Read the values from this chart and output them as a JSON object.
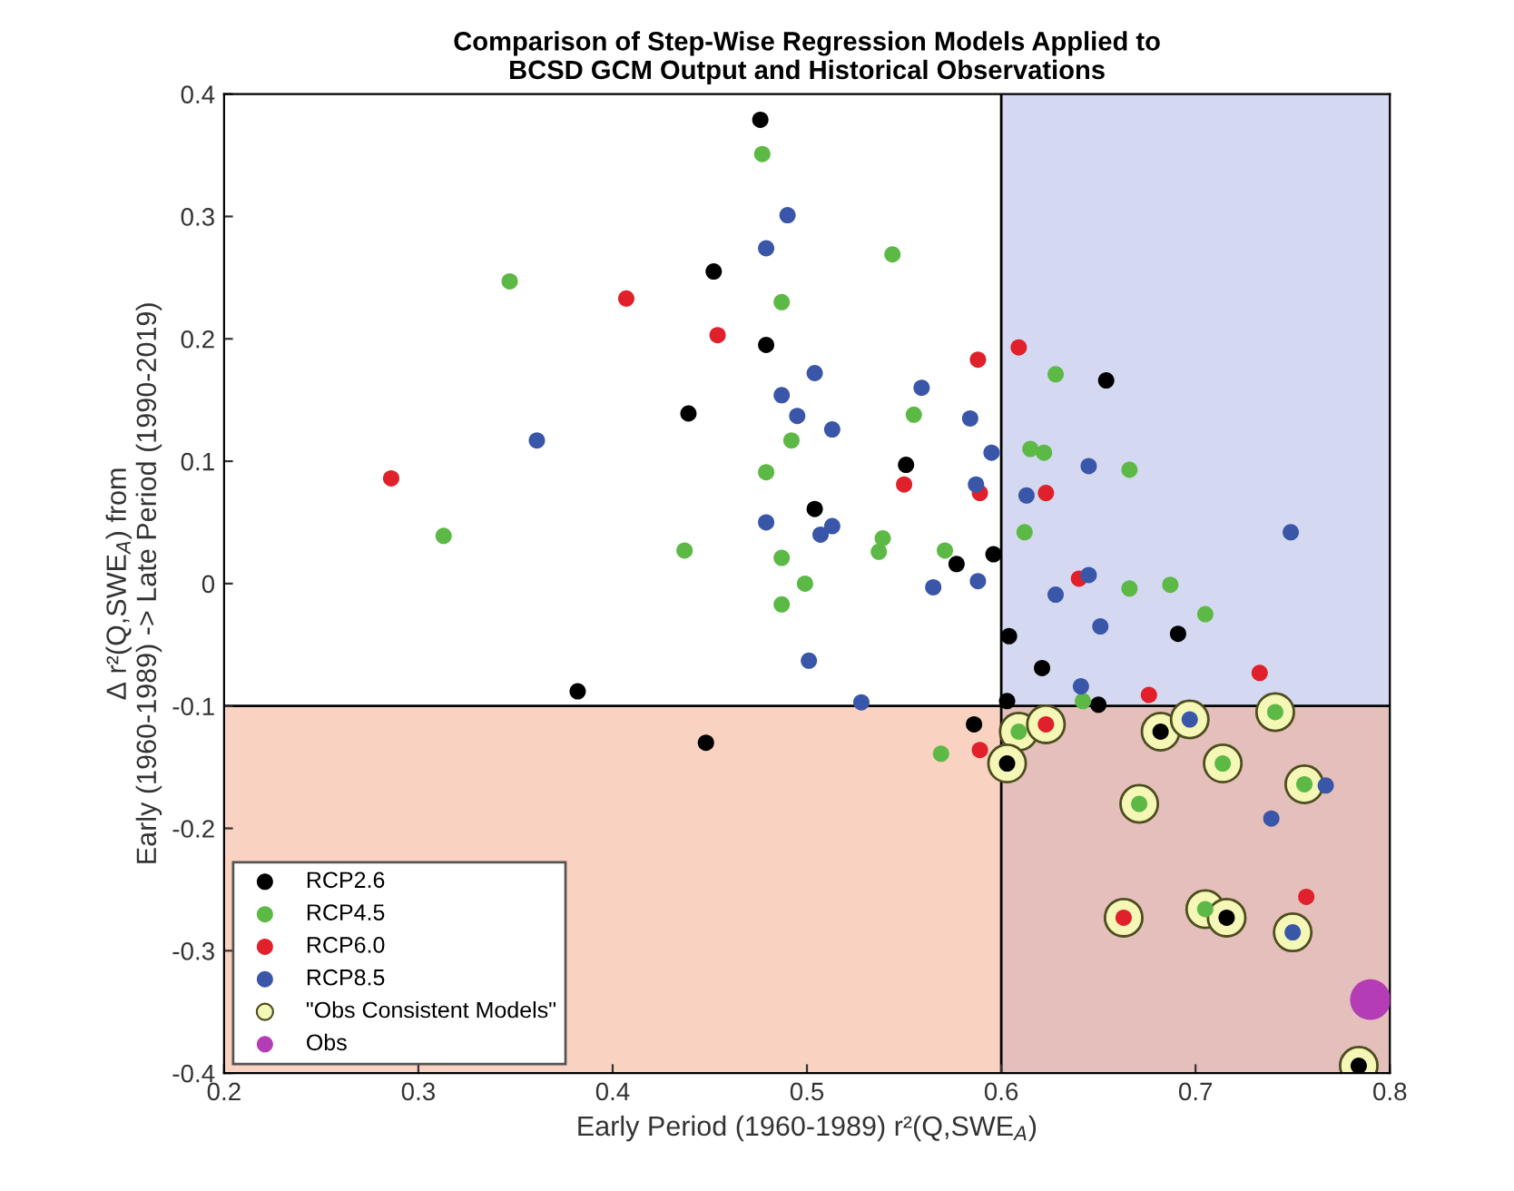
{
  "chart_data": {
    "type": "scatter",
    "title": "Comparison of Step-Wise Regression Models Applied to\nBCSD GCM Output and Historical Observations",
    "xlabel": "Early Period (1960-1989) r²(Q,SWE$_{A}$)",
    "ylabel": "Δ r²(Q,SWE$_{A}$) from\nEarly (1960-1989) -> Late Period (1990-2019)",
    "xlim": [
      0.2,
      0.8
    ],
    "ylim": [
      -0.4,
      0.4
    ],
    "xticks": [
      0.2,
      0.3,
      0.4,
      0.5,
      0.6,
      0.7,
      0.8
    ],
    "yticks": [
      -0.4,
      -0.3,
      -0.2,
      -0.1,
      0,
      0.1,
      0.2,
      0.3,
      0.4
    ],
    "grid": false,
    "legend": "bottom left",
    "marker": "circle",
    "bands": [
      {
        "axis": "x",
        "from": 0.6,
        "to": 0.8,
        "color": "#aab4e4"
      },
      {
        "axis": "y",
        "from": -0.4,
        "to": -0.1,
        "color": "#f4a586"
      }
    ],
    "ref_lines": [
      {
        "axis": "x",
        "value": 0.6,
        "color": "#000000"
      },
      {
        "axis": "y",
        "value": -0.1,
        "color": "#000000"
      }
    ],
    "series": [
      {
        "name": "RCP2.6",
        "color": "#000000",
        "x": [
          0.476,
          0.452,
          0.479,
          0.439,
          0.504,
          0.654,
          0.551,
          0.596,
          0.577,
          0.604,
          0.691,
          0.621,
          0.603,
          0.65,
          0.586,
          0.603,
          0.682,
          0.716,
          0.784,
          0.382,
          0.448
        ],
        "values": [
          0.379,
          0.255,
          0.195,
          0.139,
          0.061,
          0.166,
          0.097,
          0.024,
          0.016,
          -0.043,
          -0.041,
          -0.069,
          -0.096,
          -0.099,
          -0.115,
          -0.147,
          -0.121,
          -0.273,
          -0.394,
          -0.088,
          -0.13
        ]
      },
      {
        "name": "RCP4.5",
        "color": "#5cb946",
        "x": [
          0.477,
          0.347,
          0.487,
          0.492,
          0.479,
          0.313,
          0.437,
          0.487,
          0.499,
          0.487,
          0.544,
          0.628,
          0.555,
          0.615,
          0.622,
          0.666,
          0.539,
          0.537,
          0.612,
          0.571,
          0.666,
          0.687,
          0.705,
          0.642,
          0.609,
          0.569,
          0.741,
          0.714,
          0.671,
          0.756,
          0.705
        ],
        "values": [
          0.351,
          0.247,
          0.23,
          0.117,
          0.091,
          0.039,
          0.027,
          0.021,
          0.0,
          -0.017,
          0.269,
          0.171,
          0.138,
          0.11,
          0.107,
          0.093,
          0.037,
          0.026,
          0.042,
          0.027,
          -0.004,
          -0.001,
          -0.025,
          -0.096,
          -0.121,
          -0.139,
          -0.105,
          -0.147,
          -0.18,
          -0.164,
          -0.266
        ]
      },
      {
        "name": "RCP6.0",
        "color": "#e0202a",
        "x": [
          0.407,
          0.454,
          0.286,
          0.609,
          0.588,
          0.55,
          0.589,
          0.623,
          0.64,
          0.733,
          0.676,
          0.623,
          0.589,
          0.757,
          0.663
        ],
        "values": [
          0.233,
          0.203,
          0.086,
          0.193,
          0.183,
          0.081,
          0.074,
          0.074,
          0.004,
          -0.073,
          -0.091,
          -0.115,
          -0.136,
          -0.256,
          -0.273
        ]
      },
      {
        "name": "RCP8.5",
        "color": "#3a56a8",
        "x": [
          0.49,
          0.479,
          0.504,
          0.487,
          0.495,
          0.361,
          0.479,
          0.507,
          0.513,
          0.559,
          0.584,
          0.513,
          0.595,
          0.645,
          0.587,
          0.613,
          0.749,
          0.565,
          0.588,
          0.645,
          0.628,
          0.651,
          0.501,
          0.641,
          0.528,
          0.697,
          0.767,
          0.739,
          0.75
        ],
        "values": [
          0.301,
          0.274,
          0.172,
          0.154,
          0.137,
          0.117,
          0.05,
          0.04,
          0.047,
          0.16,
          0.135,
          0.126,
          0.107,
          0.096,
          0.081,
          0.072,
          0.042,
          -0.003,
          0.002,
          0.007,
          -0.009,
          -0.035,
          -0.063,
          -0.084,
          -0.097,
          -0.111,
          -0.165,
          -0.192,
          -0.285
        ]
      },
      {
        "name": "\"Obs Consistent Models\"",
        "color": "#f4f7b5",
        "x": [
          0.609,
          0.623,
          0.603,
          0.682,
          0.697,
          0.741,
          0.714,
          0.671,
          0.756,
          0.663,
          0.705,
          0.716,
          0.75,
          0.784
        ],
        "values": [
          -0.121,
          -0.115,
          -0.147,
          -0.121,
          -0.111,
          -0.105,
          -0.147,
          -0.18,
          -0.164,
          -0.273,
          -0.266,
          -0.273,
          -0.285,
          -0.394
        ]
      },
      {
        "name": "Obs",
        "color": "#b43cb4",
        "x": [
          0.79
        ],
        "values": [
          -0.34
        ]
      }
    ]
  }
}
